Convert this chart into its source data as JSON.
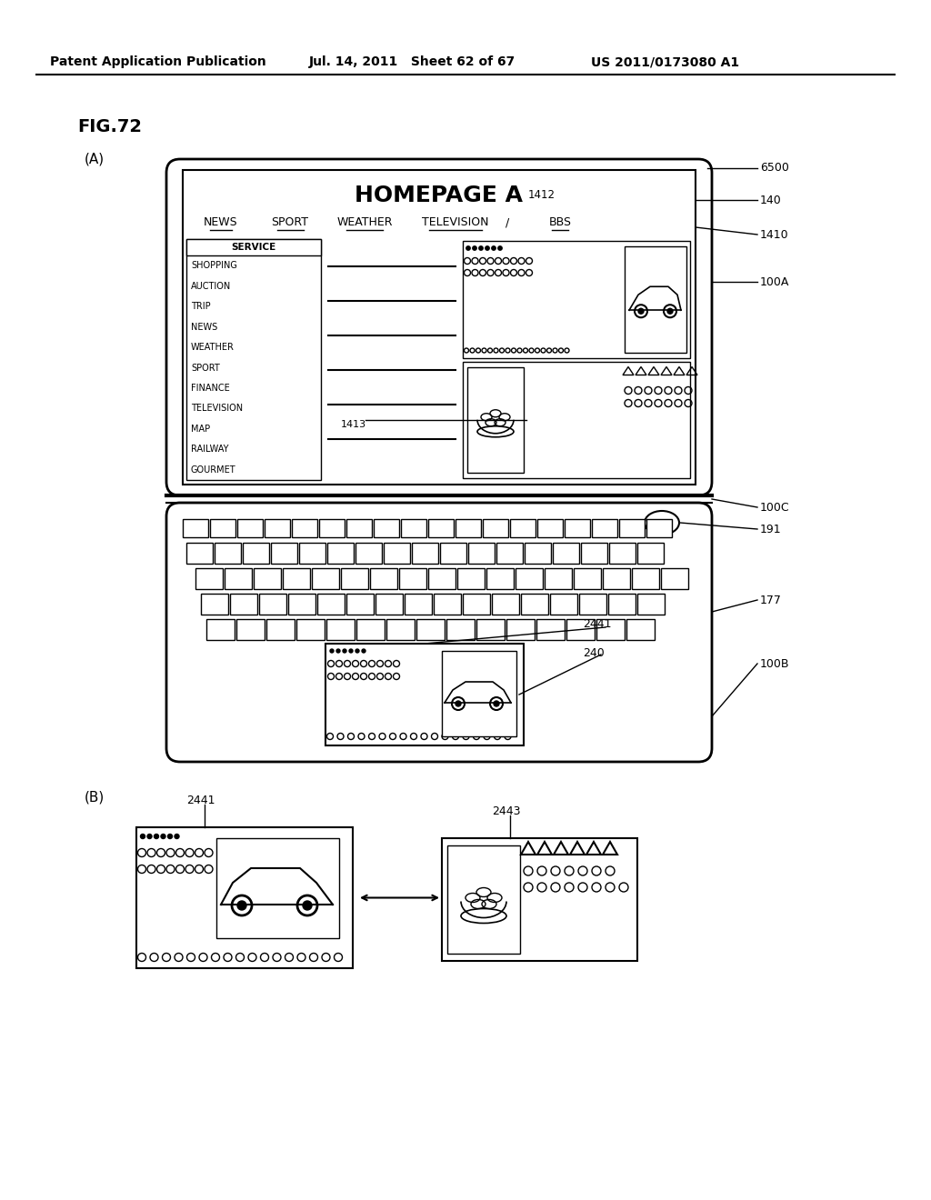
{
  "bg_color": "#ffffff",
  "header_left": "Patent Application Publication",
  "header_mid": "Jul. 14, 2011   Sheet 62 of 67",
  "header_right": "US 2011/0173080 A1",
  "fig_label": "FIG.72",
  "sub_a_label": "(A)",
  "sub_b_label": "(B)",
  "label_6500": "6500",
  "label_140": "140",
  "label_1410": "1410",
  "label_100A": "100A",
  "label_100C": "100C",
  "label_191": "191",
  "label_177": "177",
  "label_100B": "100B",
  "label_2441_top": "2441",
  "label_240": "240",
  "label_2441_b": "2441",
  "label_2443": "2443",
  "label_1412": "1412",
  "label_1413": "1413",
  "homepage_title": "HOMEPAGE A",
  "nav_items": [
    "NEWS",
    "SPORT",
    "WEATHER",
    "TELEVISION",
    "BBS"
  ],
  "service_items": [
    "SERVICE",
    "SHOPPING",
    "AUCTION",
    "TRIP",
    "NEWS",
    "WEATHER",
    "SPORT",
    "FINANCE",
    "TELEVISION",
    "MAP",
    "RAILWAY",
    "GOURMET"
  ]
}
